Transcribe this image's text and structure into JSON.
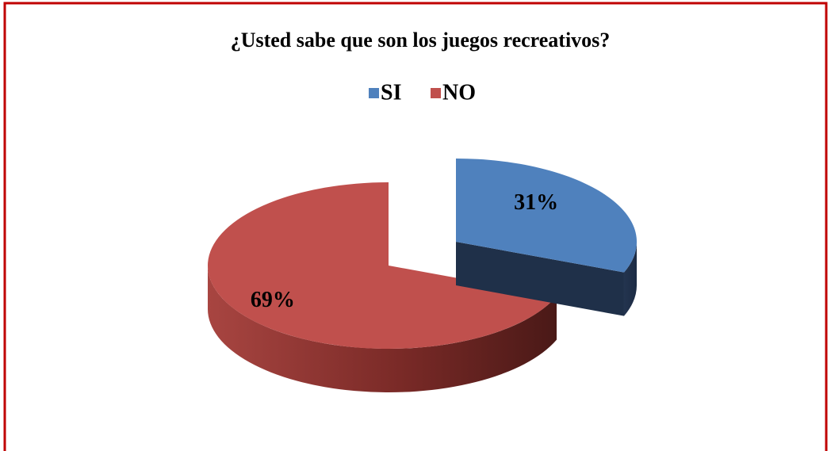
{
  "chart_data": {
    "type": "pie3d",
    "title": "¿Usted sabe que son los juegos recreativos?",
    "categories": [
      "SI",
      "NO"
    ],
    "values": [
      31,
      69
    ],
    "value_labels": [
      "31%",
      "69%"
    ],
    "colors": [
      "#4f81bd",
      "#c0504d"
    ],
    "legend": "top",
    "explode": [
      true,
      false
    ]
  }
}
